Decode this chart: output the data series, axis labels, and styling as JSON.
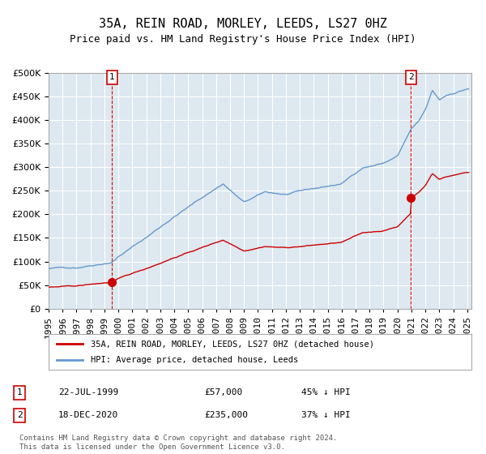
{
  "title": "35A, REIN ROAD, MORLEY, LEEDS, LS27 0HZ",
  "subtitle": "Price paid vs. HM Land Registry's House Price Index (HPI)",
  "legend_line1": "35A, REIN ROAD, MORLEY, LEEDS, LS27 0HZ (detached house)",
  "legend_line2": "HPI: Average price, detached house, Leeds",
  "annotation1_label": "1",
  "annotation1_date": "22-JUL-1999",
  "annotation1_price": "£57,000",
  "annotation1_hpi": "45% ↓ HPI",
  "annotation2_label": "2",
  "annotation2_date": "18-DEC-2020",
  "annotation2_price": "£235,000",
  "annotation2_hpi": "37% ↓ HPI",
  "footer": "Contains HM Land Registry data © Crown copyright and database right 2024.\nThis data is licensed under the Open Government Licence v3.0.",
  "purchase1_date_num": 1999.55,
  "purchase1_price": 57000,
  "purchase2_date_num": 2020.96,
  "purchase2_price": 235000,
  "vline1_date_num": 1999.55,
  "vline2_date_num": 2020.96,
  "ylim": [
    0,
    500000
  ],
  "yticks": [
    0,
    50000,
    100000,
    150000,
    200000,
    250000,
    300000,
    350000,
    400000,
    450000,
    500000
  ],
  "red_color": "#cc0000",
  "blue_color": "#6699cc",
  "bg_color": "#dde8f0",
  "plot_bg": "#dde8f0",
  "grid_color": "#ffffff",
  "vline_color": "#dd0000",
  "title_fontsize": 11,
  "subtitle_fontsize": 9,
  "tick_fontsize": 8
}
